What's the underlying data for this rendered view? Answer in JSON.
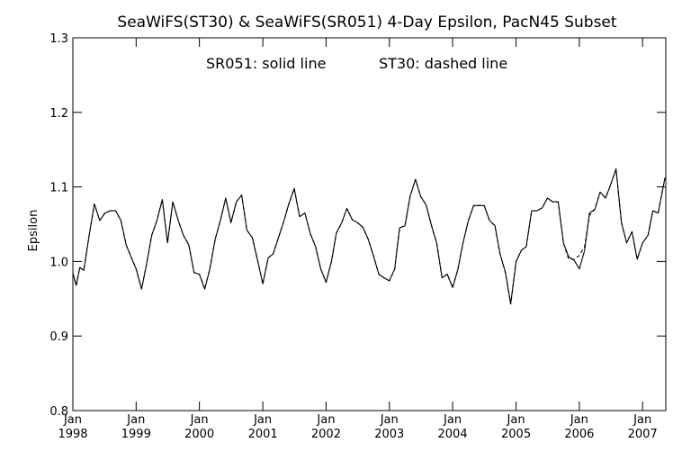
{
  "chart_data": {
    "type": "line",
    "title": "SeaWiFS(ST30) & SeaWiFS(SR051) 4-Day Epsilon, PacN45 Subset",
    "annotation_left": "SR051: solid line",
    "annotation_right": "ST30: dashed line",
    "xlabel": "",
    "ylabel": "Epsilon",
    "ylim": [
      0.8,
      1.3
    ],
    "xlim": [
      "1998-01-01",
      "2007-05-15"
    ],
    "grid": false,
    "y_ticks": [
      "0.8",
      "0.9",
      "1.0",
      "1.1",
      "1.2",
      "1.3"
    ],
    "x_ticks": [
      {
        "month": "Jan",
        "year": "1998",
        "date": "1998-01-01"
      },
      {
        "month": "Jan",
        "year": "1999",
        "date": "1999-01-01"
      },
      {
        "month": "Jan",
        "year": "2000",
        "date": "2000-01-01"
      },
      {
        "month": "Jan",
        "year": "2001",
        "date": "2001-01-01"
      },
      {
        "month": "Jan",
        "year": "2002",
        "date": "2002-01-01"
      },
      {
        "month": "Jan",
        "year": "2003",
        "date": "2003-01-01"
      },
      {
        "month": "Jan",
        "year": "2004",
        "date": "2004-01-01"
      },
      {
        "month": "Jan",
        "year": "2005",
        "date": "2005-01-01"
      },
      {
        "month": "Jan",
        "year": "2006",
        "date": "2006-01-01"
      },
      {
        "month": "Jan",
        "year": "2007",
        "date": "2007-01-01"
      }
    ],
    "series": [
      {
        "name": "SR051",
        "style": "solid",
        "x": [
          "1998-01-01",
          "1998-01-20",
          "1998-02-10",
          "1998-03-05",
          "1998-04-05",
          "1998-05-05",
          "1998-06-05",
          "1998-07-05",
          "1998-08-05",
          "1998-09-05",
          "1998-10-05",
          "1998-11-05",
          "1998-12-05",
          "1999-01-01",
          "1999-02-01",
          "1999-03-01",
          "1999-04-01",
          "1999-05-01",
          "1999-06-01",
          "1999-07-01",
          "1999-08-01",
          "1999-09-01",
          "1999-10-01",
          "1999-11-01",
          "1999-12-01",
          "2000-01-01",
          "2000-02-01",
          "2000-03-01",
          "2000-04-01",
          "2000-05-01",
          "2000-06-01",
          "2000-07-01",
          "2000-08-01",
          "2000-09-01",
          "2000-10-01",
          "2000-11-01",
          "2000-12-01",
          "2001-01-01",
          "2001-02-01",
          "2001-03-01",
          "2001-04-01",
          "2001-05-01",
          "2001-06-01",
          "2001-07-01",
          "2001-08-01",
          "2001-09-01",
          "2001-10-01",
          "2001-11-01",
          "2001-12-01",
          "2002-01-01",
          "2002-02-01",
          "2002-03-01",
          "2002-04-01",
          "2002-05-01",
          "2002-06-01",
          "2002-07-01",
          "2002-08-01",
          "2002-09-01",
          "2002-10-01",
          "2002-11-01",
          "2002-12-01",
          "2003-01-01",
          "2003-02-01",
          "2003-03-01",
          "2003-04-01",
          "2003-05-01",
          "2003-06-01",
          "2003-07-01",
          "2003-08-01",
          "2003-09-01",
          "2003-10-01",
          "2003-11-01",
          "2003-12-01",
          "2004-01-01",
          "2004-02-01",
          "2004-03-01",
          "2004-04-01",
          "2004-05-01",
          "2004-06-01",
          "2004-07-01",
          "2004-08-01",
          "2004-09-01",
          "2004-10-01",
          "2004-11-01",
          "2004-12-01",
          "2005-01-01",
          "2005-02-01",
          "2005-03-01",
          "2005-04-01",
          "2005-05-01",
          "2005-06-01",
          "2005-07-01",
          "2005-08-01",
          "2005-09-01",
          "2005-10-01",
          "2005-11-01",
          "2005-12-01",
          "2006-01-01",
          "2006-02-01",
          "2006-03-01",
          "2006-04-01",
          "2006-05-01",
          "2006-06-01",
          "2006-07-01",
          "2006-08-01",
          "2006-09-01",
          "2006-10-01",
          "2006-11-01",
          "2006-12-01",
          "2007-01-01",
          "2007-02-01",
          "2007-03-01",
          "2007-04-01",
          "2007-05-10"
        ],
        "y": [
          0.984,
          0.968,
          0.992,
          0.988,
          1.035,
          1.077,
          1.055,
          1.065,
          1.068,
          1.068,
          1.055,
          1.022,
          1.005,
          0.99,
          0.963,
          0.995,
          1.035,
          1.055,
          1.083,
          1.025,
          1.08,
          1.055,
          1.035,
          1.022,
          0.985,
          0.983,
          0.963,
          0.99,
          1.03,
          1.055,
          1.085,
          1.052,
          1.08,
          1.089,
          1.042,
          1.032,
          1.002,
          0.97,
          1.005,
          1.01,
          1.032,
          1.053,
          1.078,
          1.098,
          1.06,
          1.065,
          1.038,
          1.02,
          0.99,
          0.972,
          1.0,
          1.038,
          1.052,
          1.071,
          1.056,
          1.052,
          1.046,
          1.03,
          1.008,
          0.983,
          0.978,
          0.974,
          0.99,
          1.045,
          1.048,
          1.088,
          1.11,
          1.087,
          1.076,
          1.048,
          1.025,
          0.978,
          0.983,
          0.965,
          0.99,
          1.025,
          1.055,
          1.075,
          1.075,
          1.075,
          1.055,
          1.048,
          1.01,
          0.985,
          0.943,
          1.0,
          1.015,
          1.02,
          1.068,
          1.068,
          1.072,
          1.085,
          1.08,
          1.08,
          1.025,
          1.006,
          1.002,
          0.99,
          1.015,
          1.065,
          1.07,
          1.093,
          1.085,
          1.103,
          1.124,
          1.052,
          1.025,
          1.04,
          1.003,
          1.025,
          1.035,
          1.068,
          1.065,
          1.112
        ]
      },
      {
        "name": "ST30",
        "style": "dashed",
        "x": [
          "1998-01-01",
          "1998-01-20",
          "1998-02-10",
          "1998-03-05",
          "1998-04-05",
          "1998-05-05",
          "1998-06-05",
          "1998-07-05",
          "1998-08-05",
          "1998-09-05",
          "1998-10-05",
          "1998-11-05",
          "1998-12-05",
          "1999-01-01",
          "1999-02-01",
          "1999-03-01",
          "1999-04-01",
          "1999-05-01",
          "1999-06-01",
          "1999-07-01",
          "1999-08-01",
          "1999-09-01",
          "1999-10-01",
          "1999-11-01",
          "1999-12-01",
          "2000-01-01",
          "2000-02-01",
          "2000-03-01",
          "2000-04-01",
          "2000-05-01",
          "2000-06-01",
          "2000-07-01",
          "2000-08-01",
          "2000-09-01",
          "2000-10-01",
          "2000-11-01",
          "2000-12-01",
          "2001-01-01",
          "2001-02-01",
          "2001-03-01",
          "2001-04-01",
          "2001-05-01",
          "2001-06-01",
          "2001-07-01",
          "2001-08-01",
          "2001-09-01",
          "2001-10-01",
          "2001-11-01",
          "2001-12-01",
          "2002-01-01",
          "2002-02-01",
          "2002-03-01",
          "2002-04-01",
          "2002-05-01",
          "2002-06-01",
          "2002-07-01",
          "2002-08-01",
          "2002-09-01",
          "2002-10-01",
          "2002-11-01",
          "2002-12-01",
          "2003-01-01",
          "2003-02-01",
          "2003-03-01",
          "2003-04-01",
          "2003-05-01",
          "2003-06-01",
          "2003-07-01",
          "2003-08-01",
          "2003-09-01",
          "2003-10-01",
          "2003-11-01",
          "2003-12-01",
          "2004-01-01",
          "2004-02-01",
          "2004-03-01",
          "2004-04-01",
          "2004-05-01",
          "2004-06-01",
          "2004-07-01",
          "2004-08-01",
          "2004-09-01",
          "2004-10-01",
          "2004-11-01",
          "2004-12-01",
          "2005-01-01",
          "2005-02-01",
          "2005-03-01",
          "2005-04-01",
          "2005-05-01",
          "2005-06-01",
          "2005-07-01",
          "2005-08-01",
          "2005-09-01",
          "2005-10-01",
          "2005-11-01",
          "2005-12-01",
          "2006-01-01",
          "2006-02-01",
          "2006-03-01",
          "2006-04-01",
          "2006-05-01",
          "2006-06-01",
          "2006-07-01",
          "2006-08-01",
          "2006-09-01",
          "2006-10-01",
          "2006-11-01",
          "2006-12-01",
          "2007-01-01",
          "2007-02-01",
          "2007-03-01",
          "2007-04-01",
          "2007-05-10"
        ],
        "y": [
          0.984,
          0.968,
          0.992,
          0.988,
          1.035,
          1.077,
          1.055,
          1.065,
          1.068,
          1.068,
          1.055,
          1.022,
          1.005,
          0.99,
          0.963,
          0.995,
          1.035,
          1.055,
          1.083,
          1.025,
          1.08,
          1.055,
          1.035,
          1.022,
          0.985,
          0.983,
          0.963,
          0.99,
          1.03,
          1.055,
          1.085,
          1.052,
          1.08,
          1.089,
          1.042,
          1.032,
          1.002,
          0.97,
          1.005,
          1.01,
          1.032,
          1.053,
          1.078,
          1.098,
          1.06,
          1.065,
          1.038,
          1.02,
          0.99,
          0.972,
          1.0,
          1.038,
          1.052,
          1.071,
          1.056,
          1.052,
          1.046,
          1.03,
          1.008,
          0.983,
          0.978,
          0.974,
          0.99,
          1.045,
          1.048,
          1.088,
          1.11,
          1.087,
          1.076,
          1.048,
          1.025,
          0.978,
          0.983,
          0.965,
          0.99,
          1.025,
          1.055,
          1.075,
          1.075,
          1.075,
          1.055,
          1.048,
          1.01,
          0.985,
          0.943,
          1.0,
          1.015,
          1.02,
          1.068,
          1.068,
          1.072,
          1.085,
          1.08,
          1.08,
          1.025,
          1.003,
          1.003,
          1.008,
          1.02,
          1.062,
          1.07,
          1.093,
          1.085,
          1.103,
          1.124,
          1.052,
          1.025,
          1.04,
          1.003,
          1.025,
          1.035,
          1.068,
          1.065,
          1.112
        ]
      }
    ]
  }
}
